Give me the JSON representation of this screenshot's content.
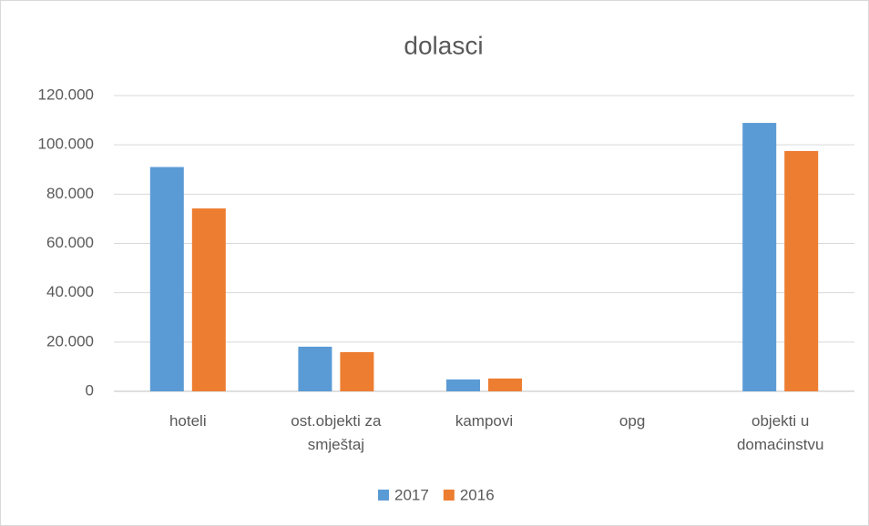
{
  "chart_data": {
    "type": "bar",
    "title": "dolasci",
    "categories": [
      "hoteli",
      "ost.objekti za smještaj",
      "kampovi",
      "opg",
      "objekti u domaćinstvu"
    ],
    "series": [
      {
        "name": "2017",
        "color": "#5b9bd5",
        "values": [
          91000,
          18100,
          4800,
          0,
          108900
        ]
      },
      {
        "name": "2016",
        "color": "#ed7d31",
        "values": [
          74200,
          15900,
          5200,
          0,
          97500
        ]
      }
    ],
    "ylim": [
      0,
      120000
    ],
    "yticks": [
      0,
      {
        "value": 20000,
        "label": "20.000"
      },
      {
        "value": 40000,
        "label": "40.000"
      },
      {
        "value": 60000,
        "label": "60.000"
      },
      {
        "value": 80000,
        "label": "80.000"
      },
      {
        "value": 100000,
        "label": "100.000"
      },
      {
        "value": 120000,
        "label": "120.000"
      }
    ],
    "grid": true,
    "legend": "bottom"
  }
}
